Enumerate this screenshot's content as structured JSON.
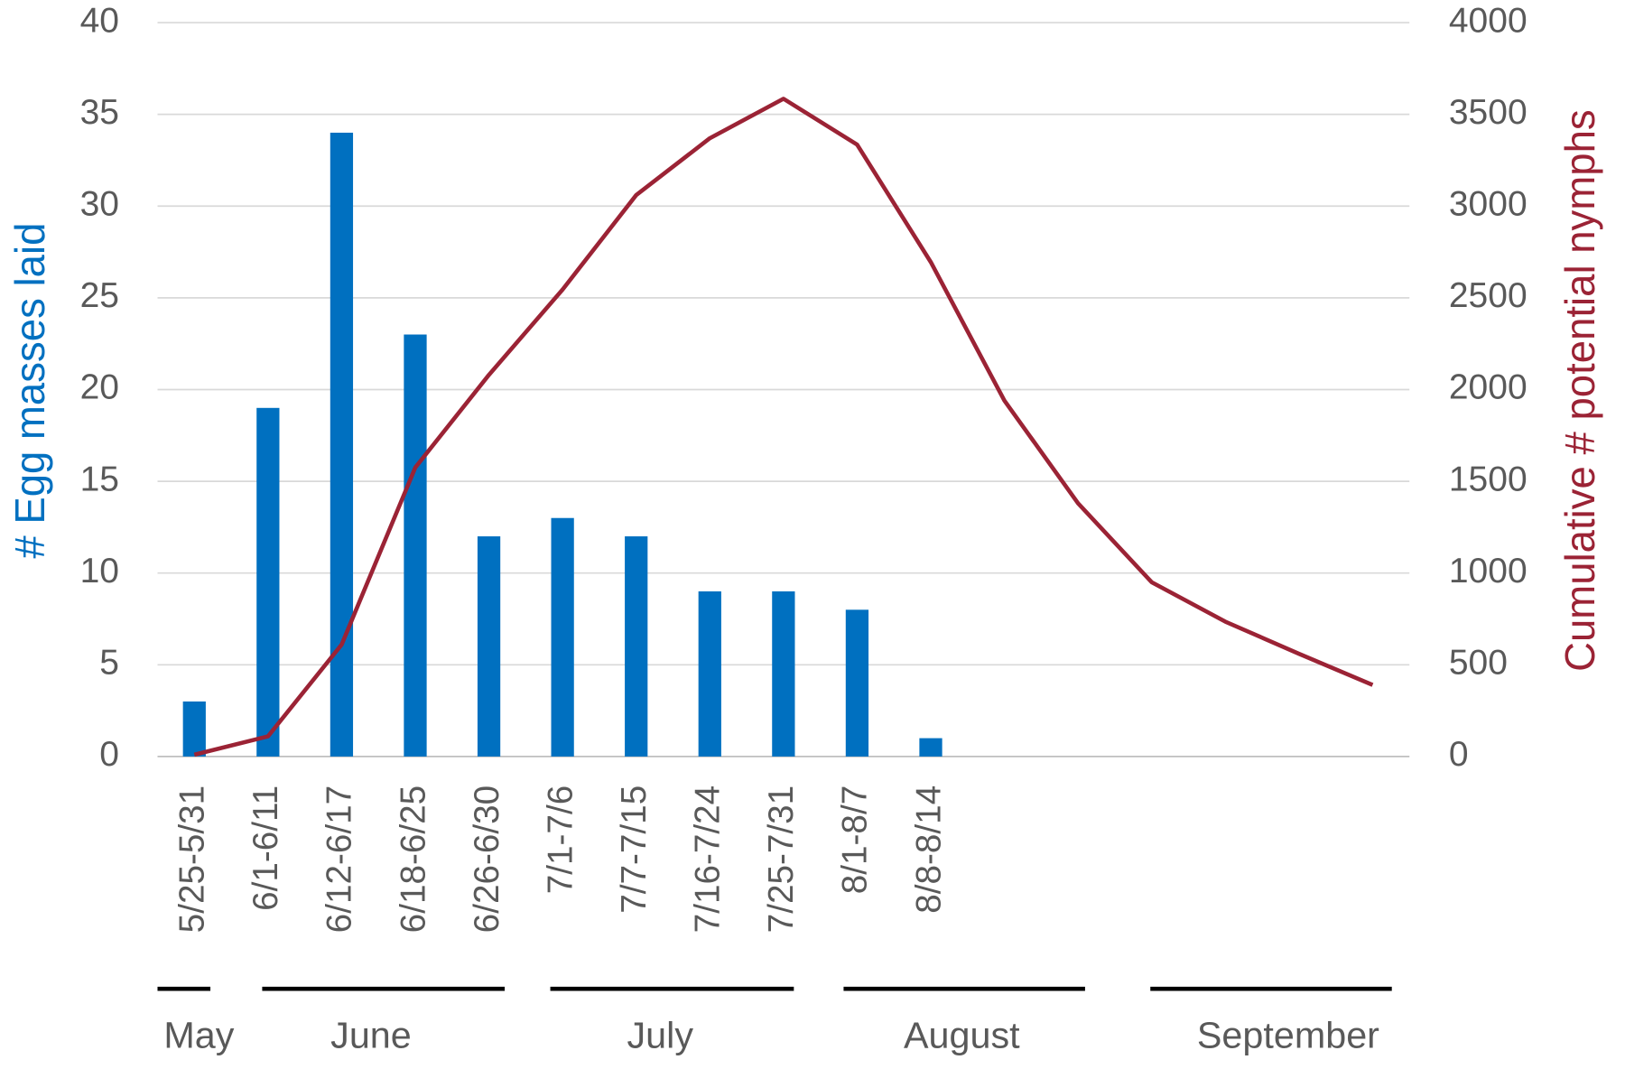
{
  "chart_data": {
    "type": "bar-line",
    "categories": [
      "5/25-5/31",
      "6/1-6/11",
      "6/12-6/17",
      "6/18-6/25",
      "6/26-6/30",
      "7/1-7/6",
      "7/7-7/15",
      "7/16-7/24",
      "7/25-7/31",
      "8/1-8/7",
      "8/8-8/14",
      null,
      null,
      null,
      null,
      null,
      null
    ],
    "series": [
      {
        "name": "# Egg masses laid",
        "type": "bar",
        "color": "#0070c0",
        "axis": "y",
        "values": [
          3,
          19,
          34,
          23,
          12,
          13,
          12,
          9,
          9,
          8,
          1,
          null,
          null,
          null,
          null,
          null,
          null
        ]
      },
      {
        "name": "Cumulative # potential nymphs",
        "type": "line",
        "color": "#9b2335",
        "axis": "y2",
        "values": [
          10,
          110,
          610,
          1575,
          2080,
          2545,
          3060,
          3370,
          3585,
          3335,
          2695,
          1940,
          1380,
          950,
          735,
          560,
          390
        ]
      }
    ],
    "ylabel": "# Egg masses laid",
    "y2label": "Cumulative # potential nymphs",
    "ylim": [
      0,
      40
    ],
    "yticks": [
      0,
      5,
      10,
      15,
      20,
      25,
      30,
      35,
      40
    ],
    "y2lim": [
      0,
      4000
    ],
    "y2ticks": [
      0,
      500,
      1000,
      1500,
      2000,
      2500,
      3000,
      3500,
      4000
    ],
    "grid": true,
    "months": [
      "May",
      "June",
      "July",
      "August",
      "September"
    ]
  }
}
